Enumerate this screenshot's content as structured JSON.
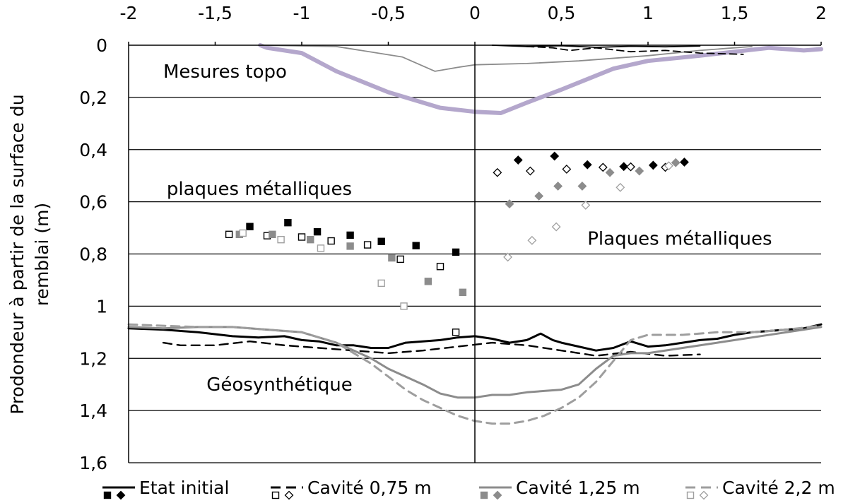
{
  "chart_data": {
    "type": "scatter",
    "ylabel": "Prodondeur à partir de la surface du remblai (m)",
    "ylabel_lines": [
      "Prodondeur à partir de la surface du",
      "remblai (m)"
    ],
    "xlim": [
      -2,
      2
    ],
    "ylim": [
      0,
      1.6
    ],
    "y_reversed": true,
    "x_axis_position": "top",
    "grid": "horizontal",
    "x_ticks": [
      -2,
      -1.5,
      -1,
      -0.5,
      0,
      0.5,
      1,
      1.5,
      2
    ],
    "x_tick_labels": [
      "-2",
      "-1,5",
      "-1",
      "-0,5",
      "0",
      "0,5",
      "1",
      "1,5",
      "2"
    ],
    "y_ticks": [
      0,
      0.2,
      0.4,
      0.6,
      0.8,
      1,
      1.2,
      1.4,
      1.6
    ],
    "y_tick_labels": [
      "0",
      "0,2",
      "0,4",
      "0,6",
      "0,8",
      "1",
      "1,2",
      "1,4",
      "1,6"
    ],
    "annotations": [
      {
        "text": "Mesures topo",
        "x": -1.8,
        "y": 0.1
      },
      {
        "text": "plaques métalliques",
        "x": -1.78,
        "y": 0.55
      },
      {
        "text": "Plaques métalliques",
        "x": 0.65,
        "y": 0.74
      },
      {
        "text": "Géosynthétique",
        "x": -1.55,
        "y": 1.3
      }
    ],
    "legend": {
      "position": "bottom",
      "entries": [
        {
          "label": "Etat initial",
          "color": "#000000",
          "dash": "",
          "fill": "filled"
        },
        {
          "label": "Cavité 0,75 m",
          "color": "#000000",
          "dash": "14 8",
          "fill": "open"
        },
        {
          "label": "Cavité 1,25 m",
          "color": "#8c8c8c",
          "dash": "",
          "fill": "filled"
        },
        {
          "label": "Cavité 2,2 m",
          "color": "#9e9e9e",
          "dash": "14 8",
          "fill": "open"
        }
      ]
    },
    "topo": {
      "series": [
        {
          "name": "Cavité 2,2 m",
          "color": "#b4a7cc",
          "width": 6,
          "x": [
            -1.24,
            -1.2,
            -1.0,
            -0.8,
            -0.5,
            -0.2,
            0,
            0.15,
            0.3,
            0.5,
            0.8,
            1.0,
            1.3,
            1.5,
            1.7,
            1.8,
            1.9,
            2.0
          ],
          "y": [
            0.0,
            0.01,
            0.03,
            0.1,
            0.18,
            0.24,
            0.255,
            0.26,
            0.22,
            0.17,
            0.09,
            0.06,
            0.04,
            0.025,
            0.01,
            0.015,
            0.02,
            0.015
          ]
        },
        {
          "name": "Cavité 1,25 m",
          "color": "#8c8c8c",
          "width": 1.8,
          "x": [
            -1.25,
            -0.8,
            -0.42,
            -0.23,
            -0.1,
            0,
            0.3,
            0.6,
            1.0,
            1.3,
            1.6
          ],
          "y": [
            0.0,
            0.005,
            0.045,
            0.1,
            0.085,
            0.075,
            0.07,
            0.06,
            0.04,
            0.02,
            0.005
          ]
        },
        {
          "name": "Cavité 0,75 m",
          "color": "#000000",
          "width": 1.8,
          "dash": "10 6",
          "x": [
            0.3,
            0.45,
            0.55,
            0.7,
            0.9,
            1.1,
            1.3,
            1.55
          ],
          "y": [
            0.005,
            0.01,
            0.02,
            0.01,
            0.025,
            0.02,
            0.03,
            0.035
          ]
        },
        {
          "name": "Etat initial",
          "color": "#000000",
          "width": 1.8,
          "x": [
            0.1,
            0.3,
            0.5,
            0.7,
            0.9,
            1.1,
            1.3
          ],
          "y": [
            0.0,
            0.005,
            0.002,
            0.008,
            0.004,
            0.006,
            0.003
          ]
        }
      ]
    },
    "plates": [
      {
        "name": "Etat initial",
        "marker": "square",
        "color": "#000000",
        "fill": "filled",
        "points": [
          [
            -1.3,
            0.695
          ],
          [
            -1.08,
            0.68
          ],
          [
            -0.91,
            0.715
          ],
          [
            -0.72,
            0.728
          ],
          [
            -0.54,
            0.752
          ],
          [
            -0.34,
            0.768
          ],
          [
            -0.11,
            0.793
          ]
        ]
      },
      {
        "name": "Cavité 0,75 m",
        "marker": "square",
        "color": "#000000",
        "fill": "open",
        "points": [
          [
            -1.42,
            0.725
          ],
          [
            -1.2,
            0.73
          ],
          [
            -1.0,
            0.735
          ],
          [
            -0.83,
            0.75
          ],
          [
            -0.62,
            0.765
          ],
          [
            -0.43,
            0.82
          ],
          [
            -0.2,
            0.848
          ],
          [
            -0.11,
            1.1
          ]
        ]
      },
      {
        "name": "Cavité 1,25 m",
        "marker": "square",
        "color": "#8c8c8c",
        "fill": "filled",
        "points": [
          [
            -1.36,
            0.725
          ],
          [
            -1.17,
            0.725
          ],
          [
            -0.95,
            0.745
          ],
          [
            -0.72,
            0.77
          ],
          [
            -0.48,
            0.815
          ],
          [
            -0.27,
            0.905
          ],
          [
            -0.07,
            0.947
          ]
        ]
      },
      {
        "name": "Cavité 2,2 m",
        "marker": "square",
        "color": "#a0a0a0",
        "fill": "open",
        "points": [
          [
            -1.34,
            0.72
          ],
          [
            -1.12,
            0.745
          ],
          [
            -0.89,
            0.778
          ],
          [
            -0.54,
            0.912
          ],
          [
            -0.41,
            1.0
          ]
        ]
      },
      {
        "name": "Etat initial",
        "marker": "diamond",
        "color": "#000000",
        "fill": "filled",
        "points": [
          [
            0.25,
            0.44
          ],
          [
            0.46,
            0.425
          ],
          [
            0.65,
            0.458
          ],
          [
            0.86,
            0.465
          ],
          [
            1.03,
            0.46
          ],
          [
            1.21,
            0.448
          ]
        ]
      },
      {
        "name": "Cavité 0,75 m",
        "marker": "diamond",
        "color": "#000000",
        "fill": "open",
        "points": [
          [
            0.13,
            0.488
          ],
          [
            0.32,
            0.482
          ],
          [
            0.53,
            0.475
          ],
          [
            0.74,
            0.468
          ],
          [
            0.9,
            0.466
          ],
          [
            1.1,
            0.468
          ]
        ]
      },
      {
        "name": "Cavité 1,25 m",
        "marker": "diamond",
        "color": "#8c8c8c",
        "fill": "filled",
        "points": [
          [
            0.2,
            0.608
          ],
          [
            0.37,
            0.578
          ],
          [
            0.48,
            0.54
          ],
          [
            0.62,
            0.54
          ],
          [
            0.78,
            0.488
          ],
          [
            0.95,
            0.482
          ],
          [
            1.16,
            0.45
          ]
        ]
      },
      {
        "name": "Cavité 2,2 m",
        "marker": "diamond",
        "color": "#9e9e9e",
        "fill": "open",
        "points": [
          [
            0.19,
            0.812
          ],
          [
            0.33,
            0.748
          ],
          [
            0.47,
            0.696
          ],
          [
            0.64,
            0.613
          ],
          [
            0.84,
            0.545
          ],
          [
            1.12,
            0.462
          ]
        ]
      }
    ],
    "geosynthetic": {
      "series": [
        {
          "name": "Etat initial",
          "color": "#000000",
          "width": 3,
          "x": [
            -2.0,
            -1.8,
            -1.6,
            -1.4,
            -1.25,
            -1.1,
            -1.0,
            -0.9,
            -0.8,
            -0.7,
            -0.6,
            -0.5,
            -0.4,
            -0.3,
            -0.2,
            -0.1,
            0.0,
            0.1,
            0.2,
            0.3,
            0.38,
            0.45,
            0.5,
            0.6,
            0.7,
            0.8,
            0.9,
            1.0,
            1.1,
            1.2,
            1.3,
            1.4,
            1.5,
            1.6,
            1.7,
            1.8,
            1.9,
            2.0
          ],
          "y": [
            1.085,
            1.09,
            1.1,
            1.115,
            1.12,
            1.115,
            1.13,
            1.135,
            1.15,
            1.15,
            1.16,
            1.16,
            1.14,
            1.135,
            1.13,
            1.12,
            1.115,
            1.125,
            1.14,
            1.13,
            1.105,
            1.13,
            1.14,
            1.155,
            1.17,
            1.16,
            1.135,
            1.155,
            1.15,
            1.14,
            1.13,
            1.125,
            1.11,
            1.1,
            1.095,
            1.09,
            1.085,
            1.07
          ]
        },
        {
          "name": "Cavité 0,75 m",
          "color": "#000000",
          "width": 2.4,
          "dash": "12 8",
          "x": [
            -1.8,
            -1.7,
            -1.5,
            -1.3,
            -1.1,
            -0.9,
            -0.7,
            -0.5,
            -0.3,
            -0.1,
            0.1,
            0.3,
            0.5,
            0.7,
            0.9,
            1.1,
            1.3
          ],
          "y": [
            1.14,
            1.15,
            1.15,
            1.135,
            1.15,
            1.16,
            1.17,
            1.18,
            1.17,
            1.155,
            1.14,
            1.15,
            1.17,
            1.19,
            1.175,
            1.19,
            1.185
          ]
        },
        {
          "name": "Cavité 1,25 m",
          "color": "#8c8c8c",
          "width": 3,
          "x": [
            -2.0,
            -1.8,
            -1.6,
            -1.4,
            -1.2,
            -1.0,
            -0.8,
            -0.6,
            -0.5,
            -0.4,
            -0.3,
            -0.2,
            -0.1,
            0.0,
            0.1,
            0.2,
            0.3,
            0.4,
            0.5,
            0.6,
            0.7,
            0.8,
            0.9,
            1.0,
            1.2,
            1.4,
            1.6,
            1.8,
            2.0
          ],
          "y": [
            1.08,
            1.085,
            1.08,
            1.08,
            1.09,
            1.1,
            1.14,
            1.2,
            1.24,
            1.27,
            1.3,
            1.335,
            1.35,
            1.35,
            1.34,
            1.34,
            1.33,
            1.325,
            1.32,
            1.3,
            1.24,
            1.19,
            1.18,
            1.18,
            1.16,
            1.14,
            1.12,
            1.1,
            1.08
          ]
        },
        {
          "name": "Cavité 2,2 m",
          "color": "#9e9e9e",
          "width": 3,
          "dash": "12 8",
          "x": [
            -2.0,
            -1.8,
            -1.6,
            -1.4,
            -1.2,
            -1.0,
            -0.8,
            -0.6,
            -0.5,
            -0.4,
            -0.3,
            -0.2,
            -0.1,
            0.0,
            0.1,
            0.2,
            0.3,
            0.4,
            0.5,
            0.6,
            0.7,
            0.8,
            0.9,
            1.0,
            1.2,
            1.4,
            1.6,
            1.8,
            2.0
          ],
          "y": [
            1.07,
            1.075,
            1.08,
            1.08,
            1.09,
            1.1,
            1.14,
            1.22,
            1.27,
            1.32,
            1.36,
            1.39,
            1.42,
            1.44,
            1.45,
            1.45,
            1.44,
            1.42,
            1.39,
            1.35,
            1.29,
            1.21,
            1.13,
            1.11,
            1.11,
            1.1,
            1.1,
            1.09,
            1.075
          ]
        }
      ]
    }
  }
}
